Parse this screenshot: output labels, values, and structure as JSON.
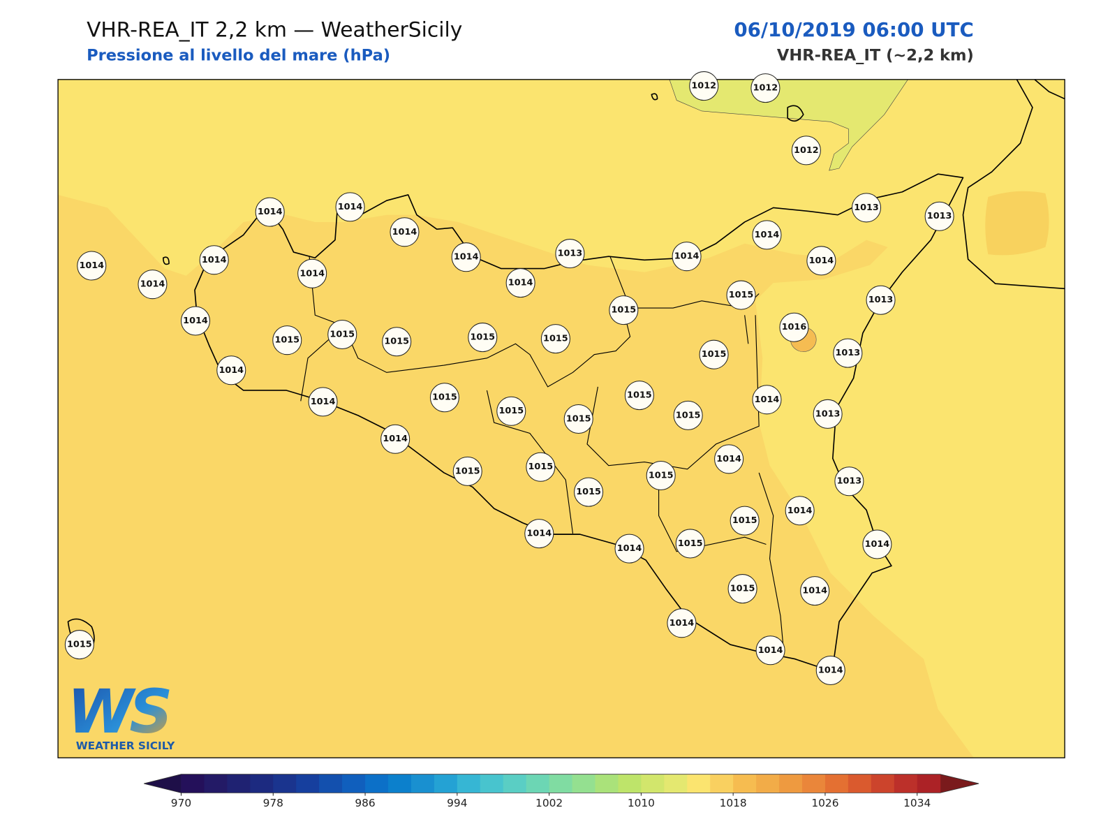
{
  "header": {
    "title": "VHR-REA_IT 2,2 km — WeatherSicily",
    "subtitle": "Pressione al livello del mare (hPa)",
    "date": "06/10/2019 06:00 UTC",
    "model": "VHR-REA_IT (~2,2 km)"
  },
  "logo": {
    "text": "WS",
    "subtext": "WEATHER SICILY"
  },
  "stations": [
    1012,
    1012,
    1012,
    1014,
    1014,
    1014,
    1014,
    1013,
    1014,
    1014,
    1013,
    1013,
    1014,
    1014,
    1014,
    1014,
    1014,
    1014,
    1015,
    1013,
    1015,
    1016,
    1014,
    1015,
    1015,
    1015,
    1015,
    1015,
    1015,
    1013,
    1014,
    1015,
    1015,
    1014,
    1014,
    1015,
    1015,
    1015,
    1013,
    1014,
    1014,
    1015,
    1015,
    1015,
    1013,
    1015,
    1014,
    1015,
    1014,
    1014,
    1015,
    1014,
    1015,
    1014,
    1014,
    1014,
    1014,
    1015
  ],
  "colorbar": {
    "clim": [
      970,
      1036
    ],
    "ticks": [
      970,
      978,
      986,
      994,
      1002,
      1010,
      1018,
      1026,
      1034
    ],
    "colors": [
      "#24105a",
      "#231a66",
      "#1f2272",
      "#1c2a80",
      "#1a348e",
      "#163f9e",
      "#1350ae",
      "#105fbd",
      "#0c70c8",
      "#0c80cc",
      "#1990d0",
      "#24a2d4",
      "#36b6d4",
      "#48c4ce",
      "#5acec4",
      "#6cd6b4",
      "#80dca2",
      "#94e090",
      "#aae27a",
      "#bee46a",
      "#d2e66c",
      "#e4e870",
      "#fbe46f",
      "#f9d060",
      "#f6bc50",
      "#f2ac48",
      "#ee9a40",
      "#ea863a",
      "#e47032",
      "#da5a2e",
      "#cc442c",
      "#bc302a",
      "#ac2226"
    ],
    "under_color": "#1e0f48",
    "over_color": "#7a1a1c"
  }
}
